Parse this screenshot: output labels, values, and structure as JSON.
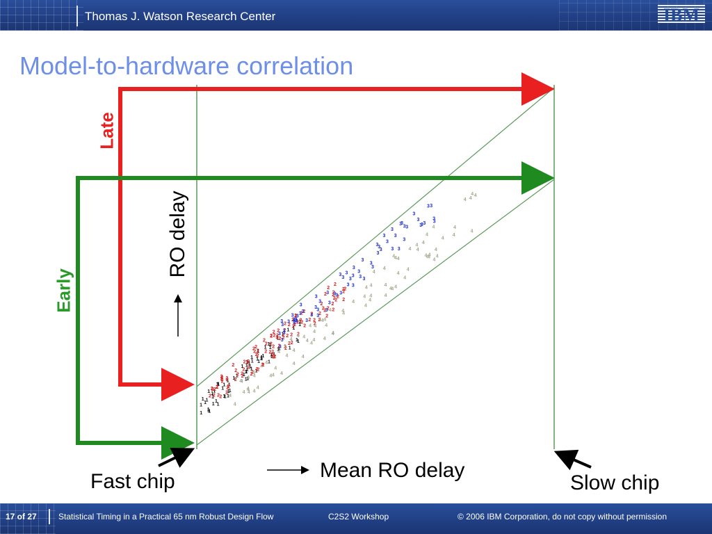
{
  "header": {
    "center_name": "Thomas J. Watson Research Center",
    "logo_text": "IBM"
  },
  "slide": {
    "title": "Model-to-hardware correlation"
  },
  "diagram": {
    "late_label": "Late",
    "early_label": "Early",
    "y_axis_label": "RO delay",
    "x_axis_label": "Mean RO delay",
    "fast_chip_label": "Fast chip",
    "slow_chip_label": "Slow chip",
    "colors": {
      "late": "#e82020",
      "early": "#1f8a1f",
      "band": "#5a9a5a",
      "series_red": "#d42020",
      "series_blue": "#1a2ccc",
      "series_black": "#111111",
      "series_tan": "#a8a890"
    }
  },
  "footer": {
    "page": "17 of 27",
    "presentation": "Statistical Timing in a Practical 65 nm Robust Design Flow",
    "event": "C2S2 Workshop",
    "copyright": "© 2006 IBM Corporation, do not copy without permission"
  }
}
